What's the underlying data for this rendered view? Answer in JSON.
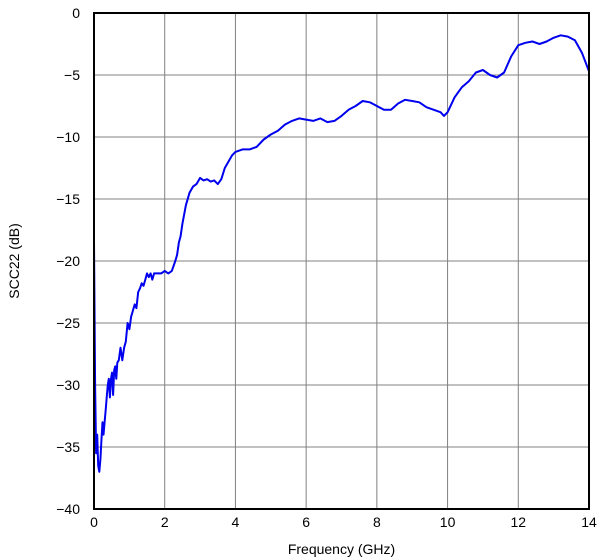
{
  "chart_data": {
    "type": "line",
    "title": "",
    "xlabel": "Frequency (GHz)",
    "ylabel": "SCC22 (dB)",
    "xlim": [
      0,
      14
    ],
    "ylim": [
      -40,
      0
    ],
    "x_ticks": [
      0,
      2,
      4,
      6,
      8,
      10,
      12,
      14
    ],
    "y_ticks": [
      0,
      -5,
      -10,
      -15,
      -20,
      -25,
      -30,
      -35,
      -40
    ],
    "x_tick_labels": [
      "0",
      "2",
      "4",
      "6",
      "8",
      "10",
      "12",
      "14"
    ],
    "y_tick_labels": [
      "0",
      "−5",
      "−10",
      "−15",
      "−20",
      "−25",
      "−30",
      "−35",
      "−40"
    ],
    "grid": true,
    "legend": "none",
    "series": [
      {
        "color": "#0000ee",
        "x": [
          0.0,
          0.03,
          0.06,
          0.09,
          0.12,
          0.15,
          0.18,
          0.21,
          0.24,
          0.27,
          0.3,
          0.33,
          0.36,
          0.39,
          0.42,
          0.45,
          0.48,
          0.51,
          0.54,
          0.57,
          0.6,
          0.63,
          0.66,
          0.7,
          0.75,
          0.8,
          0.85,
          0.9,
          0.95,
          1.0,
          1.05,
          1.1,
          1.15,
          1.2,
          1.25,
          1.3,
          1.35,
          1.4,
          1.45,
          1.5,
          1.55,
          1.6,
          1.65,
          1.7,
          1.8,
          1.9,
          2.0,
          2.1,
          2.2,
          2.3,
          2.35,
          2.4,
          2.45,
          2.5,
          2.6,
          2.7,
          2.8,
          2.9,
          3.0,
          3.1,
          3.2,
          3.3,
          3.4,
          3.5,
          3.6,
          3.7,
          3.8,
          3.9,
          4.0,
          4.2,
          4.4,
          4.6,
          4.8,
          5.0,
          5.2,
          5.4,
          5.6,
          5.8,
          6.0,
          6.2,
          6.4,
          6.6,
          6.8,
          7.0,
          7.2,
          7.4,
          7.6,
          7.8,
          8.0,
          8.2,
          8.4,
          8.6,
          8.8,
          9.0,
          9.2,
          9.4,
          9.6,
          9.8,
          9.9,
          10.0,
          10.2,
          10.4,
          10.6,
          10.8,
          11.0,
          11.2,
          11.4,
          11.6,
          11.8,
          12.0,
          12.2,
          12.4,
          12.6,
          12.8,
          13.0,
          13.2,
          13.4,
          13.6,
          13.8,
          14.0
        ],
        "y": [
          -18.5,
          -30.0,
          -35.5,
          -34.0,
          -36.5,
          -37.0,
          -36.0,
          -34.5,
          -33.0,
          -34.0,
          -33.0,
          -32.0,
          -31.0,
          -30.0,
          -29.5,
          -31.0,
          -29.5,
          -29.0,
          -30.8,
          -28.8,
          -28.5,
          -29.5,
          -28.2,
          -28.0,
          -27.0,
          -28.0,
          -27.0,
          -26.5,
          -25.0,
          -25.5,
          -24.5,
          -24.0,
          -23.5,
          -23.8,
          -22.5,
          -22.2,
          -21.8,
          -22.0,
          -21.5,
          -21.0,
          -21.3,
          -21.0,
          -21.5,
          -21.0,
          -21.0,
          -21.0,
          -20.8,
          -21.0,
          -20.8,
          -20.0,
          -19.5,
          -18.5,
          -18.0,
          -17.0,
          -15.5,
          -14.5,
          -14.0,
          -13.8,
          -13.3,
          -13.5,
          -13.4,
          -13.6,
          -13.5,
          -13.8,
          -13.4,
          -12.5,
          -12.0,
          -11.5,
          -11.2,
          -11.0,
          -11.0,
          -10.8,
          -10.2,
          -9.8,
          -9.5,
          -9.0,
          -8.7,
          -8.5,
          -8.6,
          -8.7,
          -8.5,
          -8.8,
          -8.7,
          -8.3,
          -7.8,
          -7.5,
          -7.1,
          -7.2,
          -7.5,
          -7.8,
          -7.8,
          -7.3,
          -7.0,
          -7.1,
          -7.2,
          -7.6,
          -7.8,
          -8.0,
          -8.3,
          -8.0,
          -6.8,
          -6.0,
          -5.5,
          -4.8,
          -4.6,
          -5.0,
          -5.2,
          -4.8,
          -3.5,
          -2.6,
          -2.4,
          -2.3,
          -2.5,
          -2.3,
          -2.0,
          -1.8,
          -1.9,
          -2.2,
          -3.2,
          -4.7
        ]
      }
    ]
  }
}
